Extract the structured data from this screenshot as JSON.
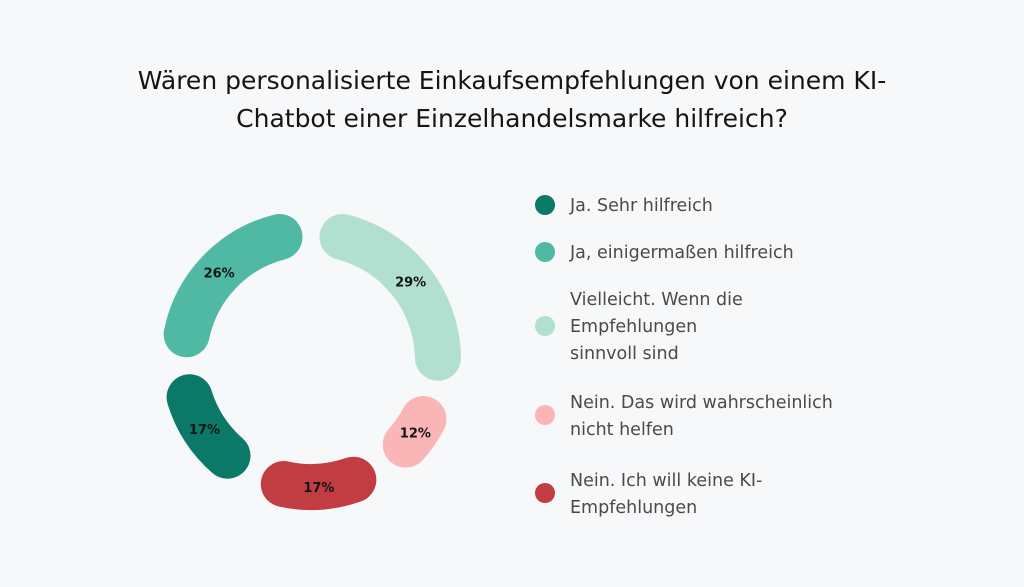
{
  "title": {
    "line1": "Wären personalisierte Einkaufsempfehlungen von einem KI-",
    "line2": "Chatbot einer Einzelhandelsmarke hilfreich?"
  },
  "legend": [
    {
      "lines": [
        "Ja. Sehr hilfreich"
      ],
      "color": "#0b7868"
    },
    {
      "lines": [
        "Ja, einigermaßen hilfreich"
      ],
      "color": "#4fb9a3"
    },
    {
      "lines": [
        "Vielleicht. Wenn die",
        "Empfehlungen",
        "sinnvoll sind"
      ],
      "color": "#b1dfd0"
    },
    {
      "lines": [
        "Nein. Das wird wahrscheinlich",
        "nicht helfen"
      ],
      "color": "#fab5b7"
    },
    {
      "lines": [
        "Nein. Ich will keine KI-",
        "Empfehlungen"
      ],
      "color": "#c13d42"
    }
  ],
  "chart_data": {
    "type": "pie",
    "title": "Wären personalisierte Einkaufsempfehlungen von einem KI-Chatbot einer Einzelhandelsmarke hilfreich?",
    "slices": [
      {
        "label": "Vielleicht. Wenn die Empfehlungen sinnvoll sind",
        "value": 29,
        "display": "29%",
        "color": "#b1dfd0"
      },
      {
        "label": "Nein. Das wird wahrscheinlich nicht helfen",
        "value": 12,
        "display": "12%",
        "color": "#fab5b7"
      },
      {
        "label": "Nein. Ich will keine KI-Empfehlungen",
        "value": 17,
        "display": "17%",
        "color": "#c13d42"
      },
      {
        "label": "Ja. Sehr hilfreich",
        "value": 17,
        "display": "17%",
        "color": "#0b7868"
      },
      {
        "label": "Ja, einigermaßen hilfreich",
        "value": 26,
        "display": "26%",
        "color": "#4fb9a3"
      }
    ],
    "legend_position": "right"
  }
}
